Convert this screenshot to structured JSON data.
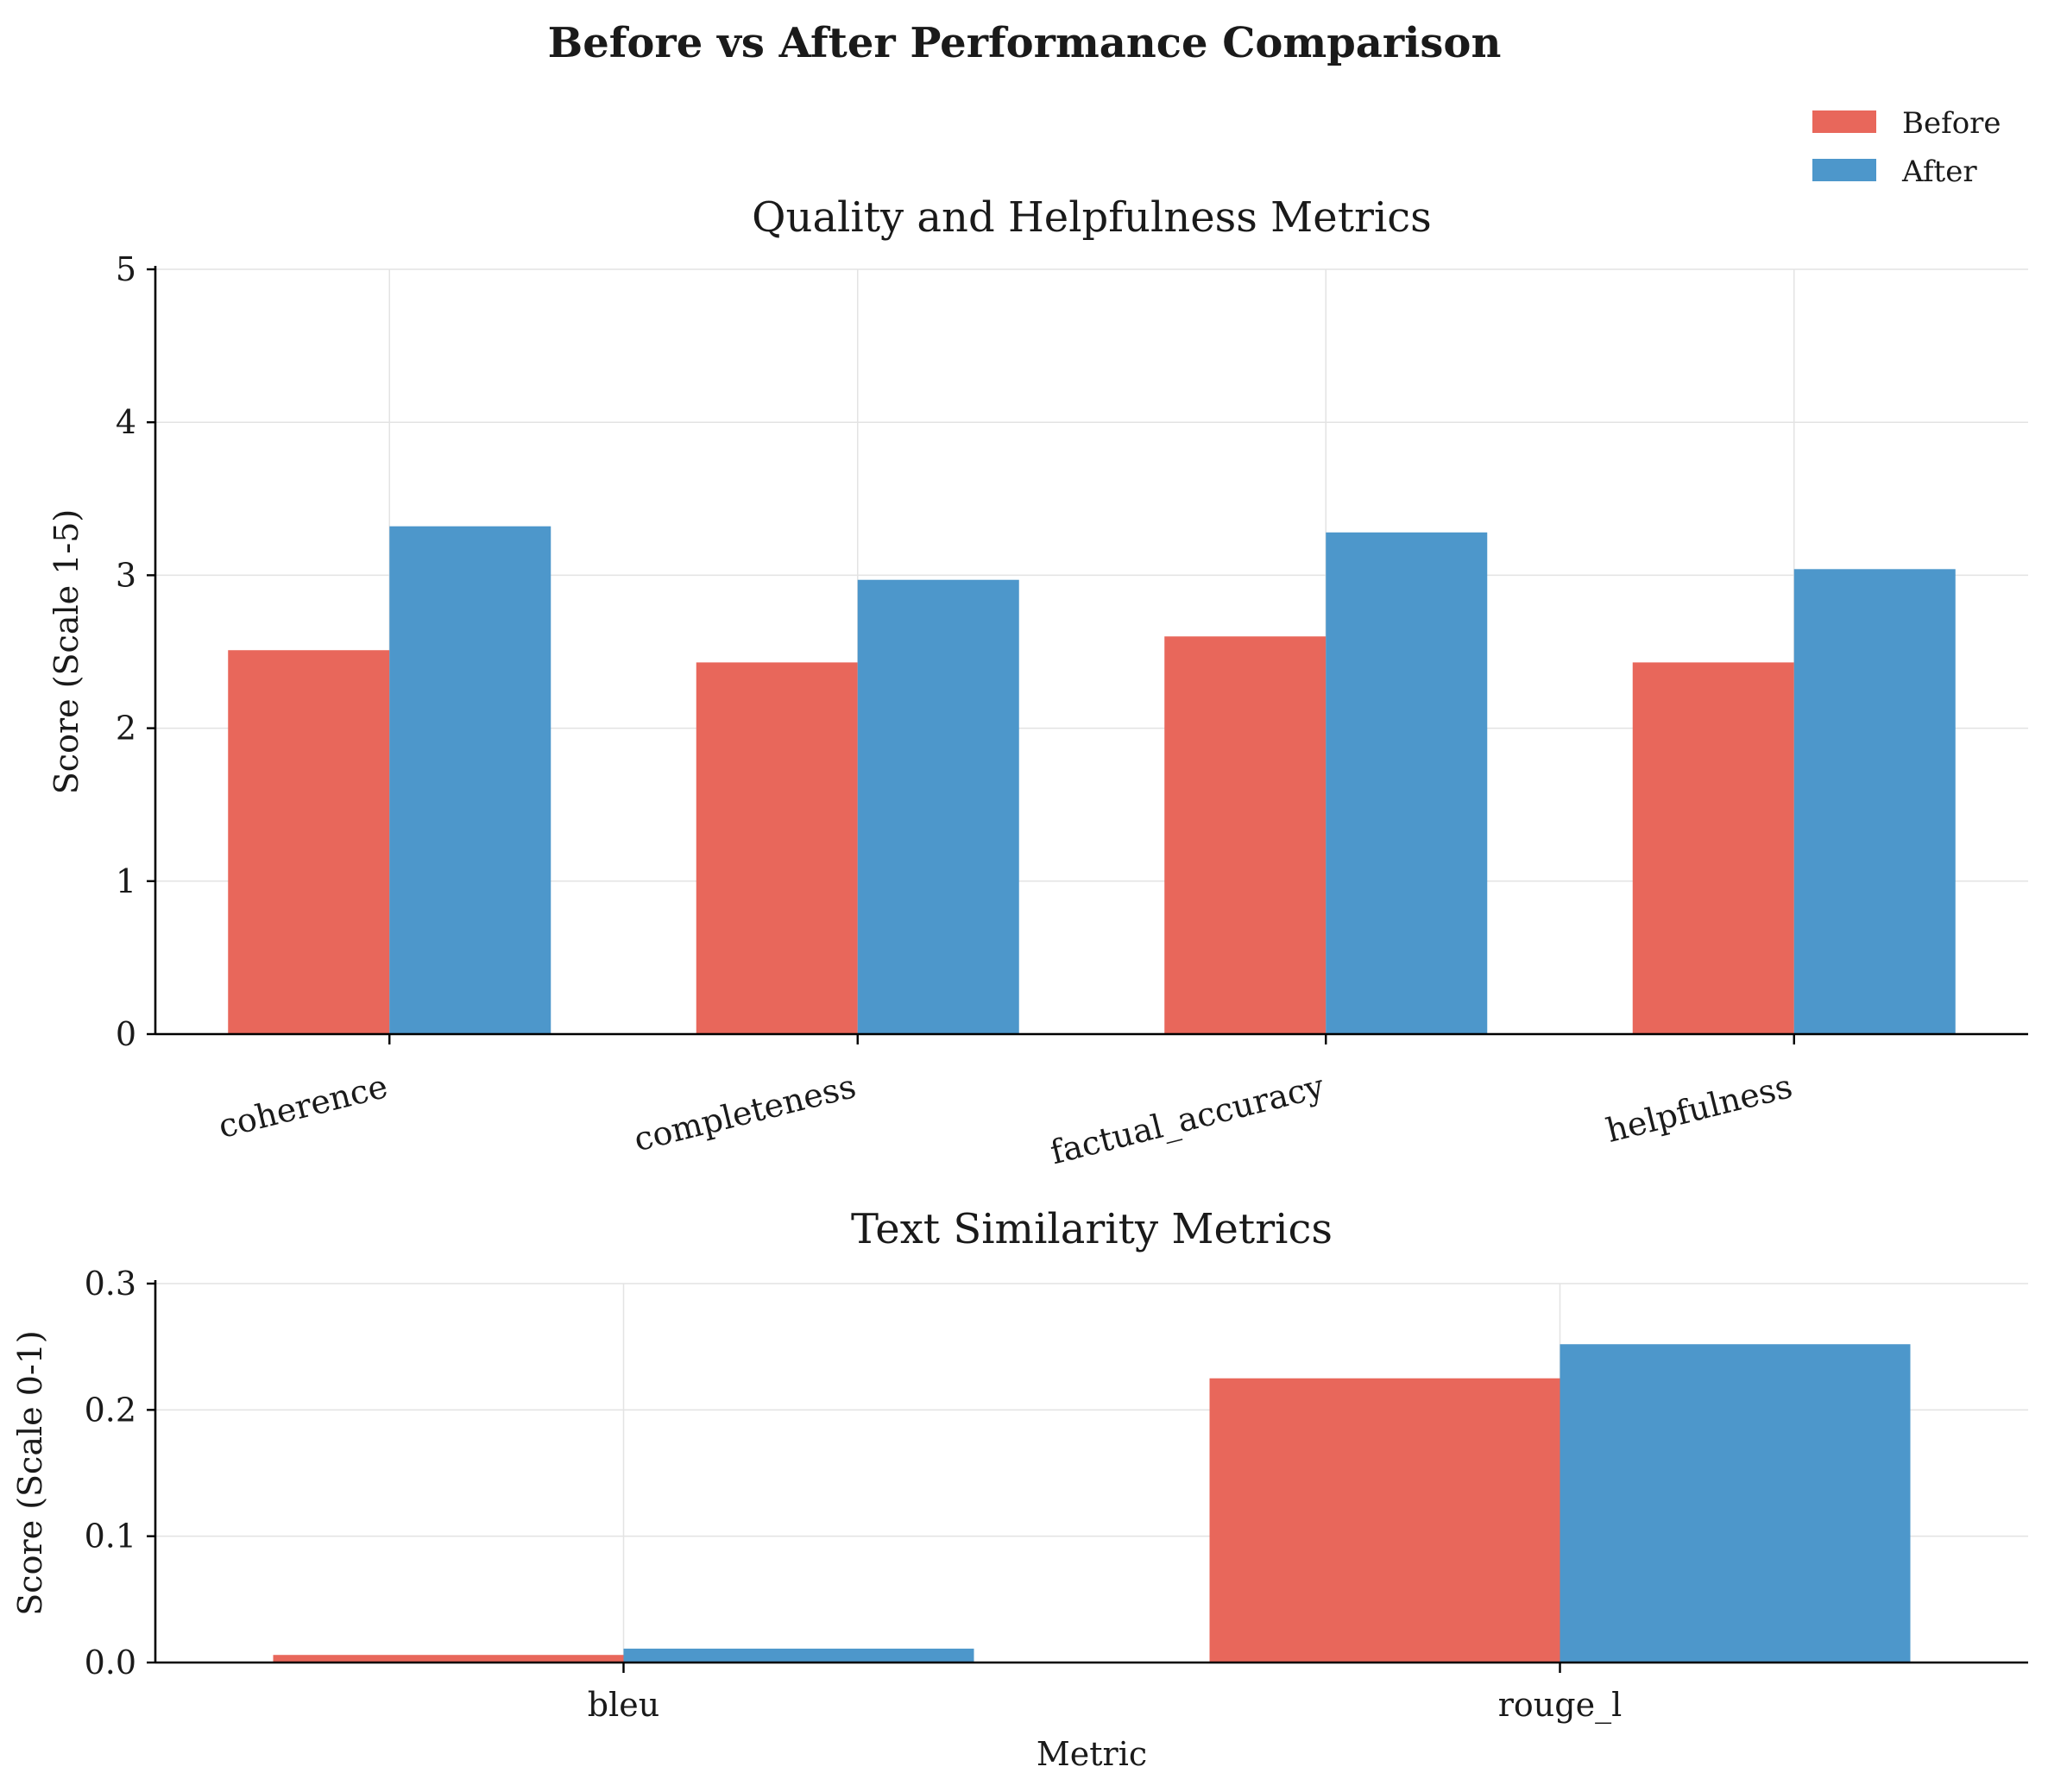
{
  "chart_data": {
    "suptitle": "Before vs After Performance Comparison",
    "legend": {
      "placement": "top-right",
      "entries": [
        {
          "label": "Before",
          "color": "#e8675b"
        },
        {
          "label": "After",
          "color": "#4d97cb"
        }
      ]
    },
    "charts": [
      {
        "type": "bar",
        "title": "Quality and Helpfulness Metrics",
        "xlabel": "",
        "ylabel": "Score (Scale 1-5)",
        "categories": [
          "coherence",
          "completeness",
          "factual_accuracy",
          "helpfulness"
        ],
        "series": [
          {
            "name": "Before",
            "values": [
              2.51,
              2.43,
              2.6,
              2.43
            ]
          },
          {
            "name": "After",
            "values": [
              3.32,
              2.97,
              3.28,
              3.04
            ]
          }
        ],
        "ylim": [
          0,
          5
        ],
        "yticks": [
          0,
          1,
          2,
          3,
          4,
          5
        ],
        "ytick_labels": [
          "0",
          "1",
          "2",
          "3",
          "4",
          "5"
        ],
        "grid": true
      },
      {
        "type": "bar",
        "title": "Text Similarity Metrics",
        "xlabel": "Metric",
        "ylabel": "Score (Scale 0-1)",
        "categories": [
          "bleu",
          "rouge_l"
        ],
        "series": [
          {
            "name": "Before",
            "values": [
              0.006,
              0.225
            ]
          },
          {
            "name": "After",
            "values": [
              0.011,
              0.252
            ]
          }
        ],
        "ylim": [
          0,
          0.3
        ],
        "yticks": [
          0,
          0.1,
          0.2,
          0.3
        ],
        "ytick_labels": [
          "0.0",
          "0.1",
          "0.2",
          "0.3"
        ],
        "grid": true
      }
    ]
  }
}
